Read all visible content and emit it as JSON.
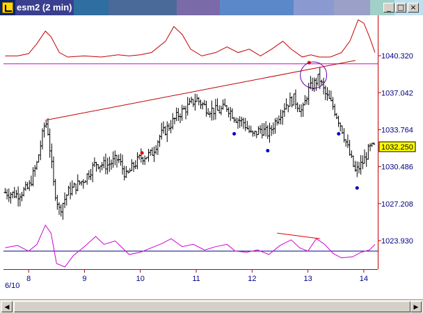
{
  "window": {
    "title": "esm2 (2 min)",
    "title_colors": [
      "#0a246a",
      "#3a3f8f",
      "#2e6ea0",
      "#4a6a9a",
      "#7a6aa8",
      "#5a88c8",
      "#8a9ad0",
      "#9aa0c8",
      "#a0d0c8",
      "#c0e0f0"
    ]
  },
  "controls": {
    "min": "_",
    "max": "□",
    "close": "×"
  },
  "scroll": {
    "left": "◀",
    "right": "▶"
  },
  "chart_data": {
    "type": "candlestick-ohlc",
    "date_label": "6/10",
    "x_ticks": [
      {
        "value": 8,
        "label": "8"
      },
      {
        "value": 9,
        "label": "9"
      },
      {
        "value": 10,
        "label": "10"
      },
      {
        "value": 11,
        "label": "11"
      },
      {
        "value": 12,
        "label": "12"
      },
      {
        "value": 13,
        "label": "13"
      },
      {
        "value": 14,
        "label": "14"
      }
    ],
    "xlim": [
      7.55,
      14.25
    ],
    "y_ticks": [
      {
        "value": 1040.32,
        "label": "1040.320"
      },
      {
        "value": 1037.042,
        "label": "1037.042"
      },
      {
        "value": 1033.764,
        "label": "1033.764"
      },
      {
        "value": 1030.486,
        "label": "1030.486"
      },
      {
        "value": 1027.208,
        "label": "1027.208"
      },
      {
        "value": 1023.93,
        "label": "1023.930"
      }
    ],
    "ylim": [
      1021.4,
      1043.9
    ],
    "last_price": {
      "value": 1032.25,
      "label": "1032.250"
    },
    "price_path": [
      [
        7.58,
        1028.2
      ],
      [
        7.8,
        1028.0
      ],
      [
        8.0,
        1028.6
      ],
      [
        8.15,
        1030.8
      ],
      [
        8.3,
        1034.6
      ],
      [
        8.35,
        1033.5
      ],
      [
        8.45,
        1028.8
      ],
      [
        8.55,
        1026.6
      ],
      [
        8.7,
        1028.2
      ],
      [
        8.85,
        1028.8
      ],
      [
        9.0,
        1029.4
      ],
      [
        9.2,
        1030.8
      ],
      [
        9.4,
        1030.6
      ],
      [
        9.6,
        1031.2
      ],
      [
        9.75,
        1029.6
      ],
      [
        9.85,
        1030.4
      ],
      [
        10.0,
        1031.3
      ],
      [
        10.2,
        1031.6
      ],
      [
        10.35,
        1033.2
      ],
      [
        10.5,
        1034.0
      ],
      [
        10.7,
        1035.2
      ],
      [
        10.85,
        1035.8
      ],
      [
        11.0,
        1036.5
      ],
      [
        11.2,
        1035.6
      ],
      [
        11.4,
        1035.4
      ],
      [
        11.55,
        1035.8
      ],
      [
        11.7,
        1034.8
      ],
      [
        11.85,
        1034.4
      ],
      [
        12.0,
        1033.2
      ],
      [
        12.15,
        1033.8
      ],
      [
        12.3,
        1033.4
      ],
      [
        12.45,
        1034.8
      ],
      [
        12.6,
        1036.0
      ],
      [
        12.75,
        1036.5
      ],
      [
        12.9,
        1035.3
      ],
      [
        13.0,
        1037.2
      ],
      [
        13.1,
        1037.8
      ],
      [
        13.2,
        1038.4
      ],
      [
        13.3,
        1037.0
      ],
      [
        13.45,
        1035.8
      ],
      [
        13.6,
        1034.0
      ],
      [
        13.75,
        1031.5
      ],
      [
        13.85,
        1030.0
      ],
      [
        14.0,
        1031.0
      ],
      [
        14.1,
        1032.1
      ],
      [
        14.2,
        1032.25
      ]
    ],
    "resistance_line": {
      "value": 1039.6
    },
    "trend_line": {
      "x0": 8.3,
      "y0": 1034.6,
      "x1": 13.85,
      "y1": 1039.9
    },
    "circle_marker": {
      "x": 13.1,
      "y": 1038.6
    },
    "red_dots": [
      {
        "x": 10.03,
        "y": 1031.7
      },
      {
        "x": 13.02,
        "y": 1039.7
      }
    ],
    "blue_dots": [
      {
        "x": 11.68,
        "y": 1033.4
      },
      {
        "x": 12.28,
        "y": 1031.9
      },
      {
        "x": 13.55,
        "y": 1033.4
      },
      {
        "x": 13.88,
        "y": 1028.6
      }
    ],
    "upper_indicator": {
      "color": "#c00000",
      "points": [
        [
          7.58,
          1040.3
        ],
        [
          7.8,
          1040.3
        ],
        [
          8.0,
          1040.5
        ],
        [
          8.15,
          1041.4
        ],
        [
          8.3,
          1042.5
        ],
        [
          8.4,
          1042.0
        ],
        [
          8.55,
          1040.6
        ],
        [
          8.7,
          1040.2
        ],
        [
          9.0,
          1040.3
        ],
        [
          9.3,
          1040.2
        ],
        [
          9.6,
          1040.4
        ],
        [
          9.8,
          1040.3
        ],
        [
          10.0,
          1040.4
        ],
        [
          10.2,
          1040.6
        ],
        [
          10.45,
          1041.6
        ],
        [
          10.6,
          1042.9
        ],
        [
          10.75,
          1042.2
        ],
        [
          10.9,
          1040.9
        ],
        [
          11.1,
          1040.3
        ],
        [
          11.35,
          1040.6
        ],
        [
          11.55,
          1041.1
        ],
        [
          11.75,
          1040.6
        ],
        [
          11.95,
          1040.9
        ],
        [
          12.15,
          1040.3
        ],
        [
          12.35,
          1040.9
        ],
        [
          12.55,
          1041.6
        ],
        [
          12.7,
          1040.9
        ],
        [
          12.9,
          1040.2
        ],
        [
          13.05,
          1040.4
        ],
        [
          13.2,
          1040.2
        ],
        [
          13.4,
          1040.2
        ],
        [
          13.6,
          1040.6
        ],
        [
          13.75,
          1041.6
        ],
        [
          13.9,
          1043.5
        ],
        [
          14.0,
          1043.2
        ],
        [
          14.1,
          1042.0
        ],
        [
          14.2,
          1040.6
        ]
      ]
    },
    "lower_indicator": {
      "color": "#d000d0",
      "baseline": 1023.0,
      "baseline_color": "#000080",
      "points": [
        [
          7.58,
          1023.3
        ],
        [
          7.8,
          1023.5
        ],
        [
          8.0,
          1023.0
        ],
        [
          8.15,
          1023.6
        ],
        [
          8.3,
          1025.3
        ],
        [
          8.4,
          1024.6
        ],
        [
          8.5,
          1021.9
        ],
        [
          8.65,
          1021.6
        ],
        [
          8.8,
          1022.6
        ],
        [
          9.0,
          1023.4
        ],
        [
          9.2,
          1024.3
        ],
        [
          9.35,
          1023.6
        ],
        [
          9.55,
          1023.9
        ],
        [
          9.8,
          1022.7
        ],
        [
          10.0,
          1022.9
        ],
        [
          10.2,
          1023.3
        ],
        [
          10.4,
          1023.7
        ],
        [
          10.55,
          1024.1
        ],
        [
          10.75,
          1023.4
        ],
        [
          10.95,
          1023.6
        ],
        [
          11.15,
          1023.1
        ],
        [
          11.35,
          1023.4
        ],
        [
          11.55,
          1023.6
        ],
        [
          11.7,
          1023.0
        ],
        [
          11.9,
          1022.9
        ],
        [
          12.1,
          1023.1
        ],
        [
          12.3,
          1022.7
        ],
        [
          12.5,
          1023.5
        ],
        [
          12.7,
          1024.0
        ],
        [
          12.85,
          1023.3
        ],
        [
          13.0,
          1023.0
        ],
        [
          13.15,
          1024.1
        ],
        [
          13.3,
          1023.6
        ],
        [
          13.45,
          1022.8
        ],
        [
          13.6,
          1022.4
        ],
        [
          13.8,
          1022.5
        ],
        [
          13.95,
          1022.9
        ],
        [
          14.1,
          1023.1
        ],
        [
          14.2,
          1023.6
        ]
      ],
      "divergence_line": {
        "x0": 12.45,
        "y0": 1024.6,
        "x1": 13.22,
        "y1": 1024.1
      }
    }
  }
}
